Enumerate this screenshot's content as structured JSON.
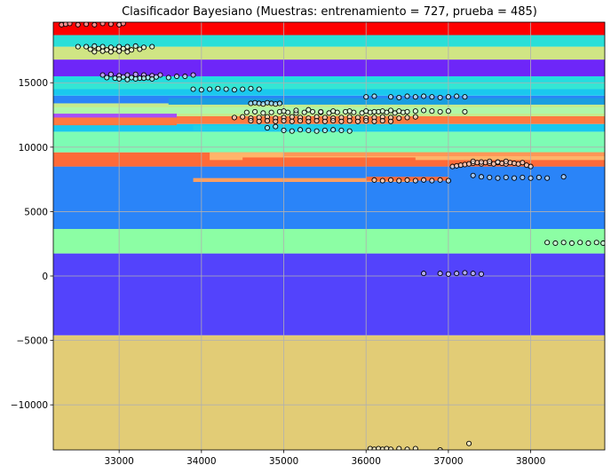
{
  "chart_data": {
    "type": "scatter",
    "title": "Clasificador Bayesiano  (Muestras: entrenamiento = 727, prueba = 485)",
    "xlabel": "",
    "ylabel": "",
    "xlim": [
      32200,
      38900
    ],
    "ylim": [
      -13500,
      19700
    ],
    "xticks": [
      33000,
      34000,
      35000,
      36000,
      37000,
      38000
    ],
    "yticks": [
      -10000,
      -5000,
      0,
      5000,
      10000,
      15000
    ],
    "xtick_labels": [
      "33000",
      "34000",
      "35000",
      "36000",
      "37000",
      "38000"
    ],
    "ytick_labels": [
      "−10000",
      "−5000",
      "0",
      "5000",
      "10000",
      "15000"
    ],
    "grid": true,
    "decision_regions": [
      {
        "y0": -13500,
        "y1": -4600,
        "color": "#e2cc76"
      },
      {
        "y0": -4600,
        "y1": 1750,
        "color": "#5343fc"
      },
      {
        "y0": 1750,
        "y1": 3650,
        "color": "#8cfea4"
      },
      {
        "y0": 3650,
        "y1": 8500,
        "color": "#2a84f8"
      },
      {
        "y0": 8500,
        "y1": 9600,
        "color": "#fe6a38"
      },
      {
        "y0": 9600,
        "y1": 11200,
        "color": "#7dfcb4"
      },
      {
        "y0": 11200,
        "y1": 11800,
        "color": "#1ac8ee"
      },
      {
        "y0": 11800,
        "y1": 12400,
        "color": "#fe7a40"
      },
      {
        "y0": 12400,
        "y1": 13400,
        "color": "#c6eb8c"
      },
      {
        "y0": 13400,
        "y1": 14000,
        "color": "#2a84f8"
      },
      {
        "y0": 14000,
        "y1": 14800,
        "color": "#1ac8ee"
      },
      {
        "y0": 14800,
        "y1": 15500,
        "color": "#24ddde"
      },
      {
        "y0": 15500,
        "y1": 16800,
        "color": "#6e26f8"
      },
      {
        "y0": 16800,
        "y1": 17800,
        "color": "#d0e584"
      },
      {
        "y0": 17800,
        "y1": 18800,
        "color": "#2adfd8"
      },
      {
        "y0": 18800,
        "y1": 19700,
        "color": "#fe0000"
      }
    ],
    "decision_bands": [
      {
        "x0": 32200,
        "x1": 38900,
        "y0": 8500,
        "y1": 8900,
        "color": "#fe6a38"
      },
      {
        "x0": 34100,
        "x1": 38900,
        "y0": 9000,
        "y1": 9600,
        "color": "#feb46a"
      },
      {
        "x0": 35000,
        "x1": 38900,
        "y0": 9300,
        "y1": 9600,
        "color": "#fe9656"
      },
      {
        "x0": 34500,
        "x1": 36600,
        "y0": 8900,
        "y1": 9200,
        "color": "#fe6a38"
      },
      {
        "x0": 33900,
        "x1": 36600,
        "y0": 7300,
        "y1": 7600,
        "color": "#ff9f60"
      },
      {
        "x0": 36000,
        "x1": 37000,
        "y0": 7400,
        "y1": 7700,
        "color": "#fe6a38"
      },
      {
        "x0": 32200,
        "x1": 38900,
        "y0": 12600,
        "y1": 13100,
        "color": "#b0f7a8"
      },
      {
        "x0": 32200,
        "x1": 33700,
        "y0": 11700,
        "y1": 12300,
        "color": "#fe7a40"
      },
      {
        "x0": 32200,
        "x1": 33700,
        "y0": 12300,
        "y1": 12600,
        "color": "#a64ef8"
      },
      {
        "x0": 33600,
        "x1": 38900,
        "y0": 13300,
        "y1": 13800,
        "color": "#1a9ee0"
      },
      {
        "x0": 33900,
        "x1": 36300,
        "y0": 11300,
        "y1": 11700,
        "color": "#20d0e6"
      },
      {
        "x0": 32200,
        "x1": 38900,
        "y0": 14500,
        "y1": 15000,
        "color": "#34e6d4"
      },
      {
        "x0": 32200,
        "x1": 38900,
        "y0": 18700,
        "y1": 19700,
        "color": "#fe0000"
      },
      {
        "x0": 36800,
        "x1": 38900,
        "y0": 4900,
        "y1": 5200,
        "color": "#2a84f8"
      },
      {
        "x0": 32200,
        "x1": 36300,
        "y0": -13500,
        "y1": -12900,
        "color": "#e2cc76"
      }
    ],
    "series": [
      {
        "x": [
          32300,
          32350,
          32400,
          32500,
          32600,
          32700,
          32800,
          32900,
          33000,
          33050
        ],
        "y": [
          19500,
          19550,
          19600,
          19500,
          19550,
          19500,
          19600,
          19550,
          19500,
          19600
        ]
      },
      {
        "x": [
          32500,
          32600,
          32700,
          32800,
          32900,
          33000,
          33100,
          33200,
          33300,
          33400,
          32650,
          32750,
          32850,
          32950,
          33050,
          33150,
          33250,
          32700,
          32800,
          32900,
          33000,
          33100
        ],
        "y": [
          17800,
          17800,
          17850,
          17800,
          17750,
          17800,
          17800,
          17850,
          17750,
          17800,
          17600,
          17650,
          17550,
          17600,
          17650,
          17550,
          17600,
          17400,
          17450,
          17400,
          17450,
          17400
        ]
      },
      {
        "x": [
          32800,
          32900,
          33000,
          33100,
          33200,
          33300,
          33400,
          33500,
          32850,
          32950,
          33050,
          33150,
          33250,
          33350,
          33450,
          33000,
          33100,
          33200,
          33300,
          33400,
          33600,
          33700,
          33800,
          33900
        ],
        "y": [
          15600,
          15650,
          15550,
          15600,
          15650,
          15600,
          15550,
          15600,
          15400,
          15350,
          15450,
          15400,
          15350,
          15400,
          15450,
          15300,
          15250,
          15300,
          15350,
          15300,
          15400,
          15500,
          15500,
          15600
        ]
      },
      {
        "x": [
          33900,
          34000,
          34100,
          34200,
          34300,
          34400,
          34500,
          34600,
          34700
        ],
        "y": [
          14500,
          14450,
          14500,
          14550,
          14500,
          14450,
          14500,
          14550,
          14500
        ]
      },
      {
        "x": [
          34600,
          34650,
          34700,
          34750,
          34800,
          34850,
          34900,
          34950
        ],
        "y": [
          13400,
          13450,
          13400,
          13350,
          13450,
          13400,
          13350,
          13400
        ]
      },
      {
        "x": [
          34400,
          34500,
          34600,
          34700,
          34800,
          34900,
          35000,
          35100,
          35200,
          35300,
          35400,
          35500,
          35600,
          35700,
          35800,
          35900,
          36000,
          36100,
          36200,
          36300,
          36400,
          36500,
          36600,
          34550,
          34650,
          34750,
          34850,
          34950,
          35050,
          35150,
          35250,
          35350,
          35450,
          35550,
          35650,
          35750,
          35850,
          35950,
          36050,
          36150,
          36250,
          36350,
          36450,
          34600,
          34700,
          34800,
          34900,
          35000,
          35100,
          35200,
          35300,
          35400,
          35500,
          35600,
          35700,
          35800,
          35900,
          36000,
          36100,
          36200,
          36300
        ],
        "y": [
          12300,
          12350,
          12250,
          12300,
          12350,
          12250,
          12300,
          12350,
          12300,
          12250,
          12350,
          12300,
          12250,
          12300,
          12350,
          12300,
          12250,
          12300,
          12350,
          12300,
          12250,
          12300,
          12350,
          12700,
          12750,
          12650,
          12700,
          12750,
          12700,
          12650,
          12700,
          12750,
          12700,
          12650,
          12700,
          12750,
          12700,
          12650,
          12700,
          12750,
          12700,
          12650,
          12700,
          12050,
          12000,
          12050,
          12000,
          12050,
          12000,
          12050,
          12000,
          12050,
          12000,
          12050,
          12000,
          12050,
          12000,
          12050,
          12000,
          12050,
          12000
        ]
      },
      {
        "x": [
          35000,
          35150,
          35300,
          35450,
          35600,
          35800,
          36000,
          36100,
          36200,
          36300,
          36400,
          36500,
          36600,
          36700,
          36800,
          36900,
          37000,
          37200
        ],
        "y": [
          12800,
          12850,
          12900,
          12750,
          12800,
          12800,
          12800,
          12750,
          12800,
          12850,
          12800,
          12750,
          12800,
          12850,
          12800,
          12750,
          12800,
          12750
        ]
      },
      {
        "x": [
          36000,
          36100,
          36300,
          36400,
          36500,
          36600,
          36700,
          36800,
          36900,
          37000,
          37100,
          37200
        ],
        "y": [
          13900,
          13950,
          13900,
          13850,
          13950,
          13900,
          13950,
          13900,
          13850,
          13900,
          13950,
          13900
        ]
      },
      {
        "x": [
          35000,
          35100,
          35200,
          35300,
          35400,
          35500,
          35600,
          35700,
          35800,
          34800,
          34900
        ],
        "y": [
          11300,
          11250,
          11350,
          11300,
          11250,
          11300,
          11350,
          11300,
          11250,
          11500,
          11600
        ]
      },
      {
        "x": [
          36100,
          36200,
          36300,
          36400,
          36500,
          36600,
          36700,
          36800,
          36900,
          37000
        ],
        "y": [
          7450,
          7400,
          7450,
          7400,
          7450,
          7400,
          7450,
          7400,
          7450,
          7400
        ]
      },
      {
        "x": [
          37050,
          37100,
          37150,
          37200,
          37250,
          37300,
          37350,
          37400,
          37450,
          37500,
          37550,
          37600,
          37650,
          37700,
          37750,
          37800,
          37850,
          37900,
          37950,
          38000,
          37300,
          37400,
          37500,
          37600,
          37700
        ],
        "y": [
          8500,
          8550,
          8600,
          8650,
          8700,
          8750,
          8800,
          8700,
          8800,
          8750,
          8700,
          8800,
          8750,
          8700,
          8800,
          8750,
          8700,
          8800,
          8600,
          8500,
          8900,
          8850,
          8900,
          8850,
          8900
        ]
      },
      {
        "x": [
          37300,
          37400,
          37500,
          37600,
          37700,
          37800,
          37900,
          38000,
          38100,
          38200,
          38400
        ],
        "y": [
          7800,
          7700,
          7650,
          7600,
          7650,
          7600,
          7650,
          7600,
          7650,
          7600,
          7700
        ]
      },
      {
        "x": [
          38200,
          38300,
          38400,
          38500,
          38600,
          38700,
          38800,
          38880
        ],
        "y": [
          2600,
          2550,
          2600,
          2550,
          2600,
          2550,
          2600,
          2550
        ]
      },
      {
        "x": [
          36700,
          36900,
          37000,
          37100,
          37200,
          37300,
          37400
        ],
        "y": [
          200,
          200,
          150,
          200,
          250,
          200,
          150
        ]
      },
      {
        "x": [
          36050,
          36100,
          36150,
          36200,
          36250,
          36300,
          36400,
          36500,
          36600,
          36900,
          37250
        ],
        "y": [
          -13400,
          -13450,
          -13400,
          -13450,
          -13400,
          -13450,
          -13400,
          -13450,
          -13400,
          -13500,
          -13000
        ]
      }
    ]
  }
}
